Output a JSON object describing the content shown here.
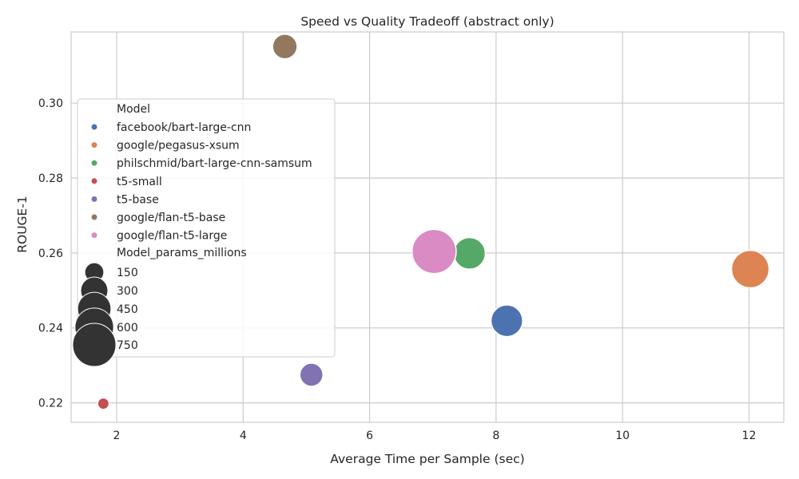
{
  "chart_data": {
    "type": "scatter",
    "title": "Speed vs Quality Tradeoff (abstract only)",
    "xlabel": "Average Time per Sample (sec)",
    "ylabel": "ROUGE-1",
    "xlim": [
      1.28,
      12.55
    ],
    "ylim": [
      0.2148,
      0.319
    ],
    "xticks": [
      2,
      4,
      6,
      8,
      10,
      12
    ],
    "yticks": [
      0.22,
      0.24,
      0.26,
      0.28,
      0.3
    ],
    "xtick_labels": [
      "2",
      "4",
      "6",
      "8",
      "10",
      "12"
    ],
    "ytick_labels": [
      "0.22",
      "0.24",
      "0.26",
      "0.28",
      "0.30"
    ],
    "grid": true,
    "legend_position": "center-left",
    "hue_legend_title": "Model",
    "size_legend_title": "Model_params_millions",
    "size_legend_values": [
      150,
      300,
      450,
      600,
      750
    ],
    "size_legend_labels": [
      "150",
      "300",
      "450",
      "600",
      "750"
    ],
    "size_range": [
      60,
      880
    ],
    "points": [
      {
        "model": "facebook/bart-large-cnn",
        "x": 8.17,
        "y": 0.2419,
        "params": 406,
        "color": "#4c72b0"
      },
      {
        "model": "google/pegasus-xsum",
        "x": 12.02,
        "y": 0.2557,
        "params": 568,
        "color": "#dd8452"
      },
      {
        "model": "philschmid/bart-large-cnn-samsum",
        "x": 7.58,
        "y": 0.2599,
        "params": 406,
        "color": "#55a868"
      },
      {
        "model": "t5-small",
        "x": 1.79,
        "y": 0.2198,
        "params": 60,
        "color": "#c44e52"
      },
      {
        "model": "t5-base",
        "x": 5.08,
        "y": 0.2275,
        "params": 220,
        "color": "#8172b3"
      },
      {
        "model": "google/flan-t5-base",
        "x": 4.66,
        "y": 0.3151,
        "params": 248,
        "color": "#937860"
      },
      {
        "model": "google/flan-t5-large",
        "x": 7.02,
        "y": 0.2604,
        "params": 783,
        "color": "#da8bc3"
      }
    ]
  }
}
